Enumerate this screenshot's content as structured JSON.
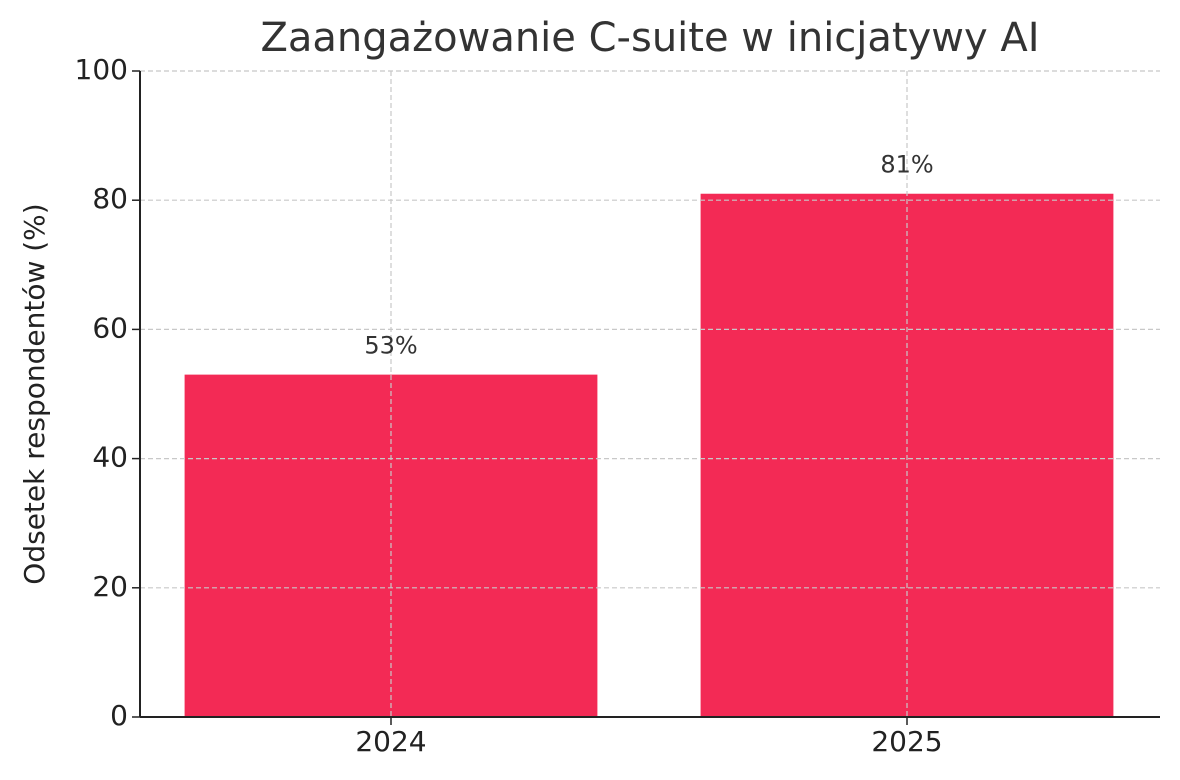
{
  "chart_data": {
    "type": "bar",
    "title": "Zaangażowanie C-suite w inicjatywy AI",
    "y_label": "Odsetek respondentów (%)",
    "categories": [
      "2024",
      "2025"
    ],
    "values": [
      53,
      81
    ],
    "value_labels": [
      "53%",
      "81%"
    ],
    "color": "#f32a55",
    "ylim": [
      0,
      100
    ],
    "yticks": [
      0,
      20,
      40,
      60,
      80,
      100
    ],
    "grid": true
  }
}
